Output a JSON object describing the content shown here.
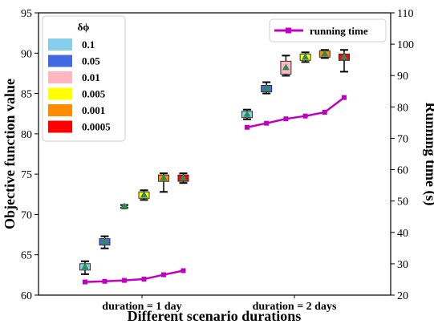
{
  "chart_data": {
    "type": "box",
    "xlabel": "Different scenario durations",
    "ylabel": "Objective function value",
    "y2label": "Running time (s)",
    "ylim": [
      60,
      95
    ],
    "yticks": [
      60,
      65,
      70,
      75,
      80,
      85,
      90,
      95
    ],
    "y2lim": [
      20,
      110
    ],
    "y2ticks": [
      20,
      30,
      40,
      50,
      60,
      70,
      80,
      90,
      100,
      110
    ],
    "categories": [
      "duration = 1 day",
      "duration = 2 days"
    ],
    "legend_title": "δϕ",
    "series": [
      {
        "name": "0.1",
        "color": "#87CEEB",
        "values": [
          63.5,
          82.4
        ]
      },
      {
        "name": "0.05",
        "color": "#4169E1",
        "values": [
          66.6,
          85.6
        ]
      },
      {
        "name": "0.01",
        "color": "#FFB6C1",
        "values": [
          71.0,
          88.2
        ]
      },
      {
        "name": "0.005",
        "color": "#FFFF00",
        "values": [
          72.4,
          89.5
        ]
      },
      {
        "name": "0.001",
        "color": "#FF8C00",
        "values": [
          74.5,
          89.9
        ]
      },
      {
        "name": "0.0005",
        "color": "#FF0000",
        "values": [
          74.5,
          89.5
        ]
      }
    ],
    "running_time": {
      "name": "running time",
      "color": "#BF00BF",
      "day1": [
        24.2,
        24.4,
        24.7,
        25.1,
        26.5,
        27.8
      ],
      "day2": [
        73.5,
        74.8,
        76.2,
        77.1,
        78.3,
        83.0
      ]
    },
    "legend_positions": [
      "top-left",
      "top-right"
    ]
  }
}
